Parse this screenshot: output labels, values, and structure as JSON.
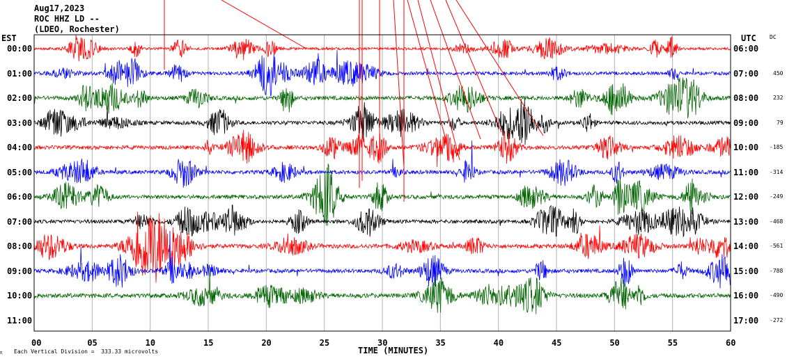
{
  "header": {
    "date": "Aug17,2023",
    "station": "ROC HHZ LD --",
    "network": "(LDEO, Rochester)"
  },
  "chart_data": {
    "type": "line",
    "subtype": "helicorder",
    "left_axis_label": "EST",
    "right_axis_label": "UTC",
    "dc_label": "DC",
    "rows": [
      {
        "est": "00:00",
        "utc": "06:00",
        "dc": "",
        "color": "#ff0000",
        "amplitude": 0.35
      },
      {
        "est": "01:00",
        "utc": "07:00",
        "dc": "450",
        "color": "#0000ff",
        "amplitude": 0.55
      },
      {
        "est": "02:00",
        "utc": "08:00",
        "dc": "232",
        "color": "#006400",
        "amplitude": 0.75
      },
      {
        "est": "03:00",
        "utc": "09:00",
        "dc": "79",
        "color": "#000000",
        "amplitude": 0.65
      },
      {
        "est": "04:00",
        "utc": "10:00",
        "dc": "-185",
        "color": "#ff0000",
        "amplitude": 0.7
      },
      {
        "est": "05:00",
        "utc": "11:00",
        "dc": "-314",
        "color": "#0000ff",
        "amplitude": 0.7
      },
      {
        "est": "06:00",
        "utc": "12:00",
        "dc": "-249",
        "color": "#006400",
        "amplitude": 0.75
      },
      {
        "est": "07:00",
        "utc": "13:00",
        "dc": "-468",
        "color": "#000000",
        "amplitude": 0.65
      },
      {
        "est": "08:00",
        "utc": "14:00",
        "dc": "-561",
        "color": "#ff0000",
        "amplitude": 0.8
      },
      {
        "est": "09:00",
        "utc": "15:00",
        "dc": "-788",
        "color": "#0000ff",
        "amplitude": 0.7
      },
      {
        "est": "10:00",
        "utc": "16:00",
        "dc": "-490",
        "color": "#006400",
        "amplitude": 0.85
      },
      {
        "est": "11:00",
        "utc": "17:00",
        "dc": "-272",
        "color": "#000000",
        "amplitude": 0.0
      }
    ],
    "x_ticks": [
      "00",
      "05",
      "10",
      "15",
      "20",
      "25",
      "30",
      "35",
      "40",
      "45",
      "50",
      "55",
      "60"
    ],
    "x_range": [
      0,
      60
    ],
    "xlabel": "TIME (MINUTES)",
    "footer": "Each Vertical Division =  333.33 microvolts",
    "grid": true
  }
}
